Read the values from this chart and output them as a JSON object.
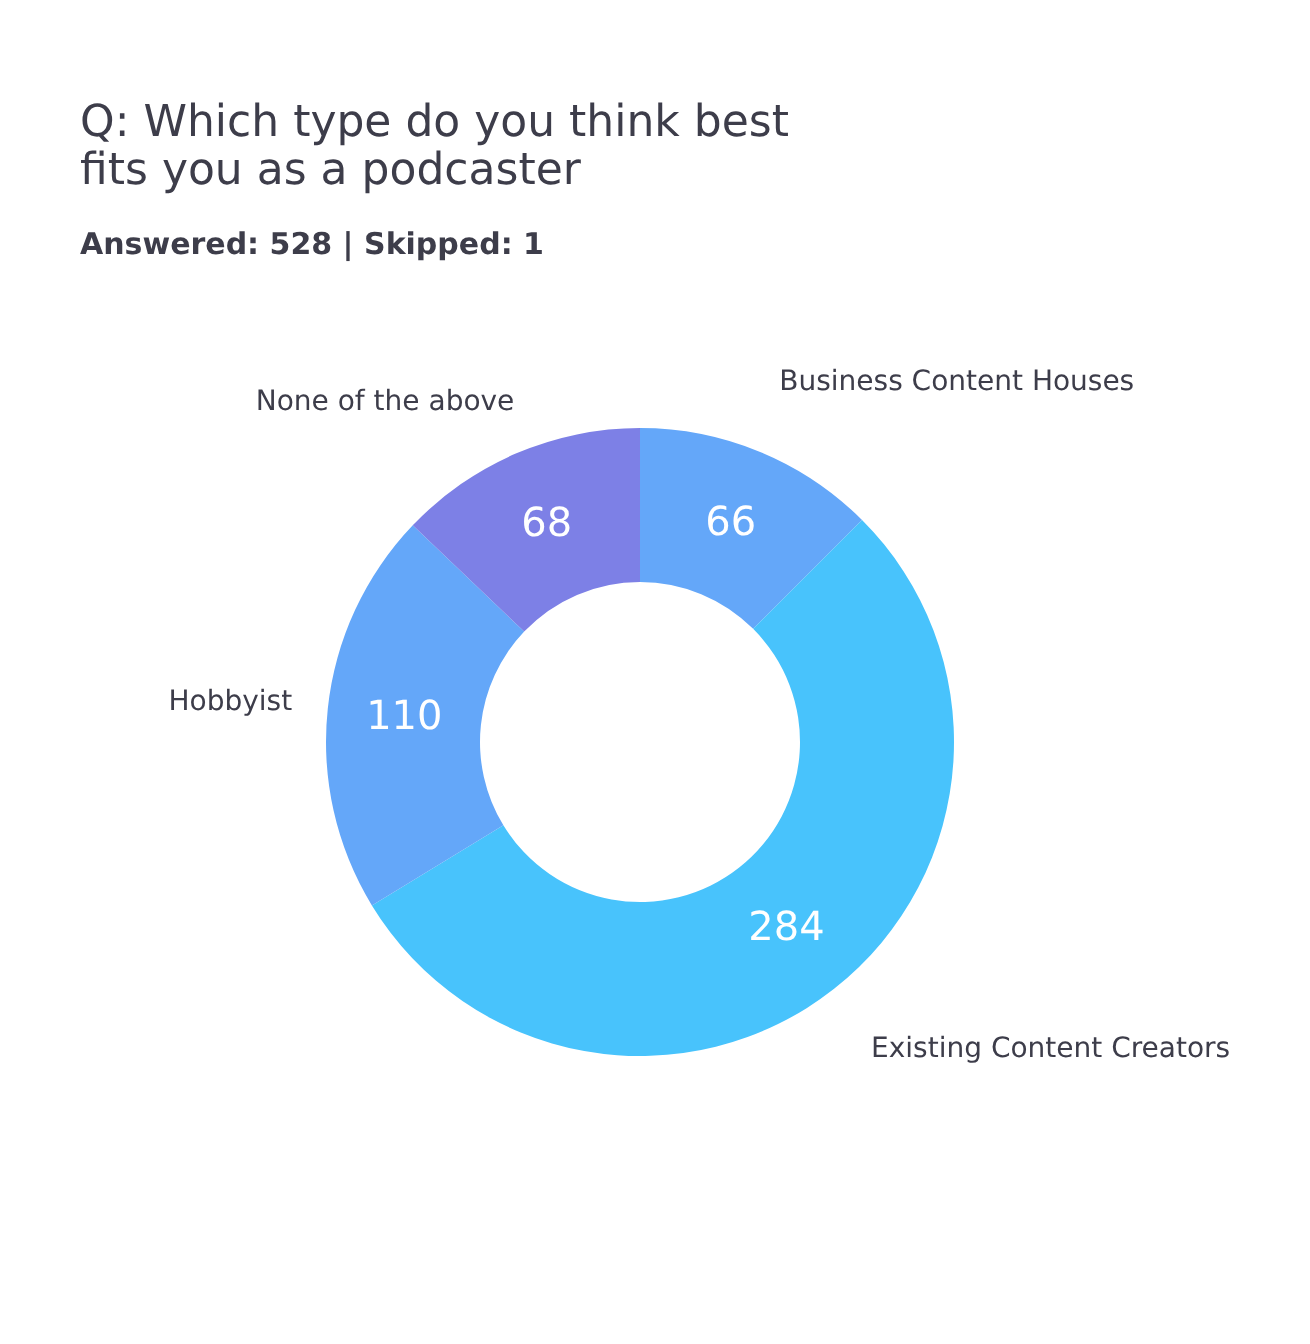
{
  "chart_data": {
    "type": "donut",
    "title": [
      "Q: Which type do you think best",
      "fits you as a podcaster"
    ],
    "subtitle": "Answered: 528  |  Skipped: 1",
    "categories": [
      "Business Content Houses",
      "Existing Content Creators",
      "Hobbyist",
      "None of the above"
    ],
    "values": [
      66,
      284,
      110,
      68
    ],
    "colors": [
      "#64a7f9",
      "#48c3fc",
      "#64a7f9",
      "#7d80e6"
    ],
    "data_labels": true
  }
}
